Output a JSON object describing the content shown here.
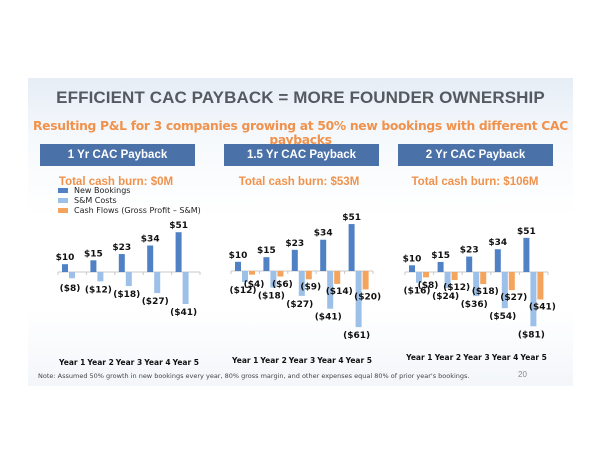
{
  "title": "EFFICIENT CAC PAYBACK = MORE FOUNDER OWNERSHIP",
  "subtitle": "Resulting P&L for 3 companies growing at 50% new bookings with different CAC paybacks",
  "legend": [
    {
      "label": "New Bookings",
      "color": "#4f81c4"
    },
    {
      "label": "S&M Costs",
      "color": "#9dc0e8"
    },
    {
      "label": "Cash Flows (Gross Profit – S&M)",
      "color": "#f4a45c"
    }
  ],
  "note": "Note: Assumed 50% growth in new bookings every year, 80% gross margin, and other expenses equal 80% of prior year's bookings.",
  "page_number": "20",
  "panels": [
    {
      "header": "1 Yr CAC Payback",
      "burn": "Total cash burn: $0M"
    },
    {
      "header": "1.5 Yr CAC Payback",
      "burn": "Total cash burn: $53M"
    },
    {
      "header": "2 Yr CAC Payback",
      "burn": "Total cash burn: $106M"
    }
  ],
  "chart_data": [
    {
      "type": "bar",
      "title": "1 Yr CAC Payback",
      "categories": [
        "Year 1",
        "Year 2",
        "Year 3",
        "Year 4",
        "Year 5"
      ],
      "series": [
        {
          "name": "New Bookings",
          "values": [
            10,
            15,
            23,
            34,
            51
          ],
          "labels": [
            "$10",
            "$15",
            "$23",
            "$34",
            "$51"
          ]
        },
        {
          "name": "S&M Costs",
          "values": [
            -8,
            -12,
            -18,
            -27,
            -41
          ],
          "labels": [
            "($8)",
            "($12)",
            "($18)",
            "($27)",
            "($41)"
          ]
        },
        {
          "name": "Cash Flows (Gross Profit – S&M)",
          "values": [
            0,
            0,
            0,
            0,
            0
          ],
          "labels": []
        }
      ],
      "units": "$M"
    },
    {
      "type": "bar",
      "title": "1.5 Yr CAC Payback",
      "categories": [
        "Year 1",
        "Year 2",
        "Year 3",
        "Year 4",
        "Year 5"
      ],
      "series": [
        {
          "name": "New Bookings",
          "values": [
            10,
            15,
            23,
            34,
            51
          ],
          "labels": [
            "$10",
            "$15",
            "$23",
            "$34",
            "$51"
          ]
        },
        {
          "name": "S&M Costs",
          "values": [
            -12,
            -18,
            -27,
            -41,
            -61
          ],
          "labels": [
            "($12)",
            "($18)",
            "($27)",
            "($41)",
            "($61)"
          ]
        },
        {
          "name": "Cash Flows (Gross Profit – S&M)",
          "values": [
            -4,
            -6,
            -9,
            -14,
            -20
          ],
          "labels": [
            "($4)",
            "($6)",
            "($9)",
            "($14)",
            "($20)"
          ]
        }
      ],
      "units": "$M"
    },
    {
      "type": "bar",
      "title": "2 Yr CAC Payback",
      "categories": [
        "Year 1",
        "Year 2",
        "Year 3",
        "Year 4",
        "Year 5"
      ],
      "series": [
        {
          "name": "New Bookings",
          "values": [
            10,
            15,
            23,
            34,
            51
          ],
          "labels": [
            "$10",
            "$15",
            "$23",
            "$34",
            "$51"
          ]
        },
        {
          "name": "S&M Costs",
          "values": [
            -16,
            -24,
            -36,
            -54,
            -81
          ],
          "labels": [
            "($16)",
            "($24)",
            "($36)",
            "($54)",
            "($81)"
          ]
        },
        {
          "name": "Cash Flows (Gross Profit – S&M)",
          "values": [
            -8,
            -12,
            -18,
            -27,
            -41
          ],
          "labels": [
            "($8)",
            "($12)",
            "($18)",
            "($27)",
            "($41)"
          ]
        }
      ],
      "units": "$M"
    }
  ]
}
